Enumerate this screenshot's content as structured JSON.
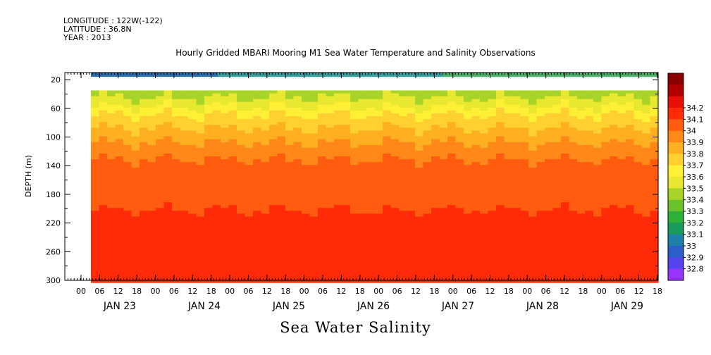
{
  "header": {
    "longitude": "LONGITUDE : 122W(-122)",
    "latitude": "LATITUDE : 36.8N",
    "year": "YEAR : 2013"
  },
  "chart_data": {
    "type": "heatmap",
    "title": "Hourly Gridded MBARI Mooring M1 Sea Water Temperature and Salinity Observations",
    "xlabel": "",
    "ylabel": "DEPTH (m)",
    "footer_label": "Sea Water Salinity",
    "ylim": [
      300,
      10
    ],
    "y_ticks": [
      20,
      60,
      100,
      140,
      180,
      220,
      260,
      300
    ],
    "x_hour_ticks": [
      "00",
      "06",
      "12",
      "18",
      "00",
      "06",
      "12",
      "18",
      "00",
      "06",
      "12",
      "18",
      "00",
      "06",
      "12",
      "18",
      "00",
      "06",
      "12",
      "18",
      "00",
      "06",
      "12",
      "18",
      "00",
      "06",
      "12",
      "18",
      "00",
      "06",
      "12",
      "18"
    ],
    "x_day_labels": [
      "JAN 23",
      "JAN 24",
      "JAN 25",
      "JAN 26",
      "JAN 27",
      "JAN 28",
      "JAN 29"
    ],
    "colorbar": {
      "levels": [
        32.8,
        32.9,
        33,
        33.1,
        33.2,
        33.3,
        33.4,
        33.5,
        33.6,
        33.7,
        33.8,
        33.9,
        34,
        34.1,
        34.2
      ],
      "labels": [
        "32.8",
        "32.9",
        "33",
        "33.1",
        "33.2",
        "33.3",
        "33.4",
        "33.5",
        "33.6",
        "33.7",
        "33.8",
        "33.9",
        "34",
        "34.1",
        "34.2"
      ],
      "colors": [
        "#cc33ff",
        "#9933ff",
        "#5544ee",
        "#2a5fc8",
        "#1e7fa8",
        "#1a9a5a",
        "#2fb03a",
        "#6cc22e",
        "#a8d42a",
        "#e8e830",
        "#fff035",
        "#ffd030",
        "#ffb020",
        "#ff8818",
        "#ff5c10",
        "#ff2a08",
        "#e81004",
        "#b00000",
        "#8a0000"
      ]
    },
    "profile": [
      {
        "depth": 10,
        "value": 33.1
      },
      {
        "depth": 35,
        "value": 33.45
      },
      {
        "depth": 50,
        "value": 33.55
      },
      {
        "depth": 70,
        "value": 33.72
      },
      {
        "depth": 90,
        "value": 33.82
      },
      {
        "depth": 110,
        "value": 33.92
      },
      {
        "depth": 130,
        "value": 34.0
      },
      {
        "depth": 160,
        "value": 34.05
      },
      {
        "depth": 200,
        "value": 34.1
      },
      {
        "depth": 230,
        "value": 34.15
      },
      {
        "depth": 250,
        "value": 34.2
      },
      {
        "depth": 275,
        "value": 34.18
      },
      {
        "depth": 300,
        "value": 34.12
      }
    ]
  }
}
